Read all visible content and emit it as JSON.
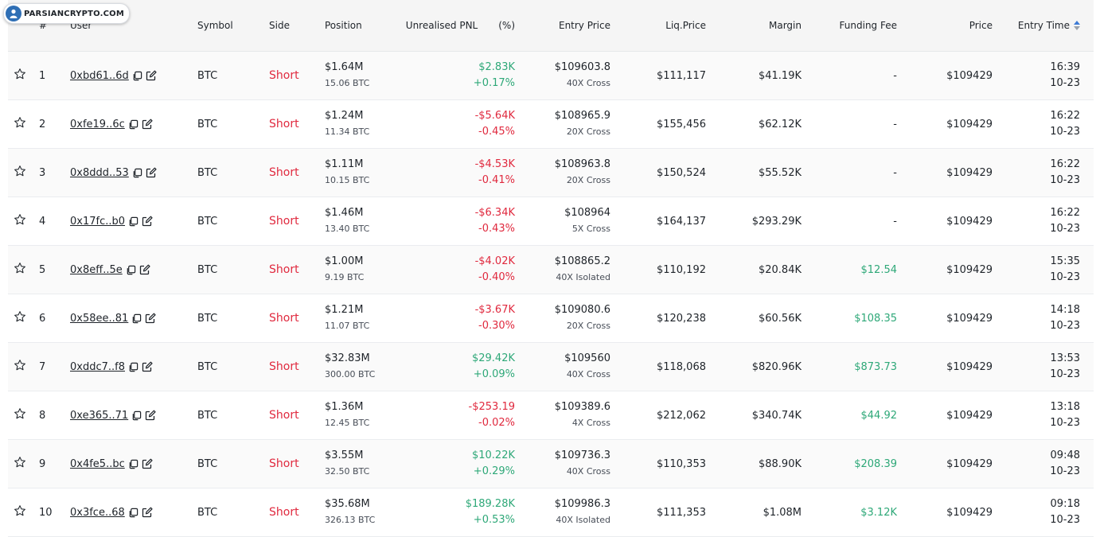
{
  "logo": {
    "text": "PARSIANCRYPTO.COM"
  },
  "headers": {
    "rank": "#",
    "user": "User",
    "symbol": "Symbol",
    "side": "Side",
    "position": "Position",
    "pnl": "Unrealised PNL",
    "pnl_pct": "(%)",
    "entry_price": "Entry Price",
    "liq_price": "Liq.Price",
    "margin": "Margin",
    "funding_fee": "Funding Fee",
    "price": "Price",
    "entry_time": "Entry Time"
  },
  "colors": {
    "profit": "#2ea878",
    "loss": "#e0293e",
    "sort_active": "#3e7bd6"
  },
  "rows": [
    {
      "rank": "1",
      "user": "0xbd61..6d",
      "symbol": "BTC",
      "side": "Short",
      "position": "$1.64M",
      "position_btc": "15.06 BTC",
      "pnl": "$2.83K",
      "pnl_pct": "+0.17%",
      "pnl_dir": "profit",
      "entry_price": "$109603.8",
      "leverage": "40X Cross",
      "liq_price": "$111,117",
      "margin": "$41.19K",
      "funding_fee": "-",
      "funding_dir": "neutral",
      "price": "$109429",
      "time": "16:39",
      "date": "10-23"
    },
    {
      "rank": "2",
      "user": "0xfe19..6c",
      "symbol": "BTC",
      "side": "Short",
      "position": "$1.24M",
      "position_btc": "11.34 BTC",
      "pnl": "-$5.64K",
      "pnl_pct": "-0.45%",
      "pnl_dir": "loss",
      "entry_price": "$108965.9",
      "leverage": "20X Cross",
      "liq_price": "$155,456",
      "margin": "$62.12K",
      "funding_fee": "-",
      "funding_dir": "neutral",
      "price": "$109429",
      "time": "16:22",
      "date": "10-23"
    },
    {
      "rank": "3",
      "user": "0x8ddd..53",
      "symbol": "BTC",
      "side": "Short",
      "position": "$1.11M",
      "position_btc": "10.15 BTC",
      "pnl": "-$4.53K",
      "pnl_pct": "-0.41%",
      "pnl_dir": "loss",
      "entry_price": "$108963.8",
      "leverage": "20X Cross",
      "liq_price": "$150,524",
      "margin": "$55.52K",
      "funding_fee": "-",
      "funding_dir": "neutral",
      "price": "$109429",
      "time": "16:22",
      "date": "10-23"
    },
    {
      "rank": "4",
      "user": "0x17fc..b0",
      "symbol": "BTC",
      "side": "Short",
      "position": "$1.46M",
      "position_btc": "13.40 BTC",
      "pnl": "-$6.34K",
      "pnl_pct": "-0.43%",
      "pnl_dir": "loss",
      "entry_price": "$108964",
      "leverage": "5X Cross",
      "liq_price": "$164,137",
      "margin": "$293.29K",
      "funding_fee": "-",
      "funding_dir": "neutral",
      "price": "$109429",
      "time": "16:22",
      "date": "10-23"
    },
    {
      "rank": "5",
      "user": "0x8eff..5e",
      "symbol": "BTC",
      "side": "Short",
      "position": "$1.00M",
      "position_btc": "9.19 BTC",
      "pnl": "-$4.02K",
      "pnl_pct": "-0.40%",
      "pnl_dir": "loss",
      "entry_price": "$108865.2",
      "leverage": "40X Isolated",
      "liq_price": "$110,192",
      "margin": "$20.84K",
      "funding_fee": "$12.54",
      "funding_dir": "profit",
      "price": "$109429",
      "time": "15:35",
      "date": "10-23"
    },
    {
      "rank": "6",
      "user": "0x58ee..81",
      "symbol": "BTC",
      "side": "Short",
      "position": "$1.21M",
      "position_btc": "11.07 BTC",
      "pnl": "-$3.67K",
      "pnl_pct": "-0.30%",
      "pnl_dir": "loss",
      "entry_price": "$109080.6",
      "leverage": "20X Cross",
      "liq_price": "$120,238",
      "margin": "$60.56K",
      "funding_fee": "$108.35",
      "funding_dir": "profit",
      "price": "$109429",
      "time": "14:18",
      "date": "10-23"
    },
    {
      "rank": "7",
      "user": "0xddc7..f8",
      "symbol": "BTC",
      "side": "Short",
      "position": "$32.83M",
      "position_btc": "300.00 BTC",
      "pnl": "$29.42K",
      "pnl_pct": "+0.09%",
      "pnl_dir": "profit",
      "entry_price": "$109560",
      "leverage": "40X Cross",
      "liq_price": "$118,068",
      "margin": "$820.96K",
      "funding_fee": "$873.73",
      "funding_dir": "profit",
      "price": "$109429",
      "time": "13:53",
      "date": "10-23"
    },
    {
      "rank": "8",
      "user": "0xe365..71",
      "symbol": "BTC",
      "side": "Short",
      "position": "$1.36M",
      "position_btc": "12.45 BTC",
      "pnl": "-$253.19",
      "pnl_pct": "-0.02%",
      "pnl_dir": "loss",
      "entry_price": "$109389.6",
      "leverage": "4X Cross",
      "liq_price": "$212,062",
      "margin": "$340.74K",
      "funding_fee": "$44.92",
      "funding_dir": "profit",
      "price": "$109429",
      "time": "13:18",
      "date": "10-23"
    },
    {
      "rank": "9",
      "user": "0x4fe5..bc",
      "symbol": "BTC",
      "side": "Short",
      "position": "$3.55M",
      "position_btc": "32.50 BTC",
      "pnl": "$10.22K",
      "pnl_pct": "+0.29%",
      "pnl_dir": "profit",
      "entry_price": "$109736.3",
      "leverage": "40X Cross",
      "liq_price": "$110,353",
      "margin": "$88.90K",
      "funding_fee": "$208.39",
      "funding_dir": "profit",
      "price": "$109429",
      "time": "09:48",
      "date": "10-23"
    },
    {
      "rank": "10",
      "user": "0x3fce..68",
      "symbol": "BTC",
      "side": "Short",
      "position": "$35.68M",
      "position_btc": "326.13 BTC",
      "pnl": "$189.28K",
      "pnl_pct": "+0.53%",
      "pnl_dir": "profit",
      "entry_price": "$109986.3",
      "leverage": "40X Isolated",
      "liq_price": "$111,353",
      "margin": "$1.08M",
      "funding_fee": "$3.12K",
      "funding_dir": "profit",
      "price": "$109429",
      "time": "09:18",
      "date": "10-23"
    }
  ]
}
